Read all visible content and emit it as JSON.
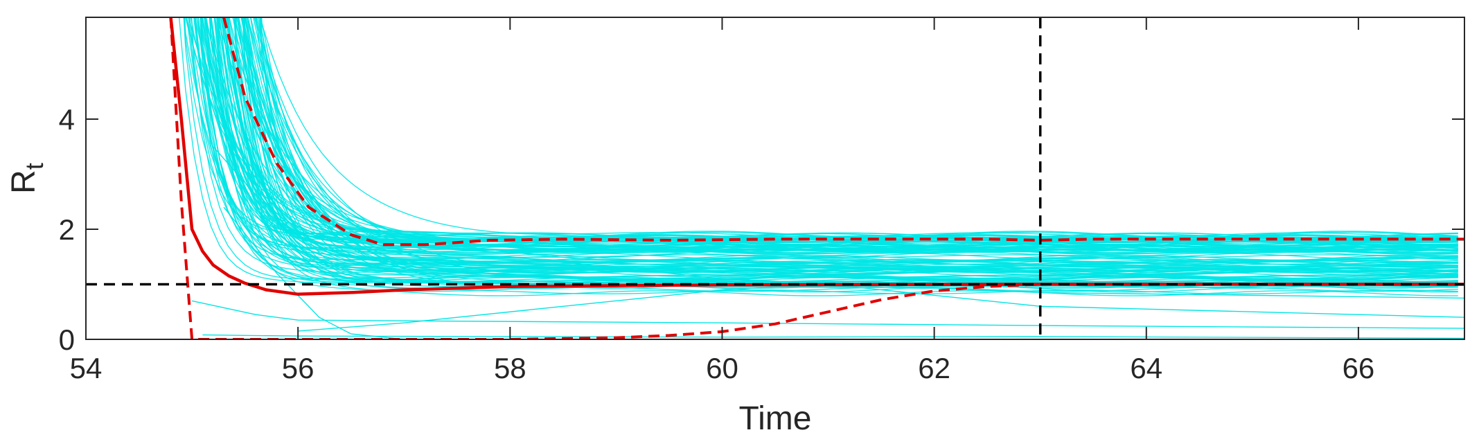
{
  "chart_data": {
    "type": "line",
    "xlabel": "Time",
    "ylabel": "R",
    "ylabel_subscript": "t",
    "xlim": [
      54,
      67
    ],
    "ylim": [
      0,
      5.85
    ],
    "xticks": [
      54,
      56,
      58,
      60,
      62,
      64,
      66
    ],
    "yticks": [
      0,
      2,
      4
    ],
    "grid": false,
    "colors": {
      "samples": "#00e5e5",
      "median": "#e00000",
      "bounds": "#e00000",
      "reference": "#000000",
      "axis": "#262626"
    },
    "reference_lines": [
      {
        "orientation": "horizontal",
        "value": 1,
        "style": "dashed"
      },
      {
        "orientation": "vertical",
        "value": 63,
        "style": "dashed"
      }
    ],
    "series": [
      {
        "role": "median",
        "style": "solid",
        "x": [
          54.8,
          54.9,
          55.0,
          55.1,
          55.2,
          55.35,
          55.5,
          55.7,
          56.0,
          56.5,
          57.0,
          58.0,
          60.0,
          63.0,
          67.0
        ],
        "y": [
          5.85,
          4.0,
          2.0,
          1.6,
          1.35,
          1.15,
          1.02,
          0.9,
          0.82,
          0.85,
          0.9,
          0.96,
          0.99,
          1.0,
          1.0
        ]
      },
      {
        "role": "upper_bound",
        "style": "dashed",
        "x": [
          55.3,
          55.5,
          55.8,
          56.1,
          56.5,
          56.8,
          57.2,
          57.8,
          58.5,
          59.5,
          60.5,
          61.5,
          62.5,
          63.0,
          63.5,
          64.5,
          65.5,
          66.5,
          67.0
        ],
        "y": [
          5.85,
          4.4,
          3.2,
          2.4,
          1.9,
          1.72,
          1.72,
          1.8,
          1.82,
          1.8,
          1.82,
          1.82,
          1.82,
          1.8,
          1.82,
          1.82,
          1.82,
          1.82,
          1.82
        ]
      },
      {
        "role": "lower_bound",
        "style": "dashed",
        "x": [
          54.8,
          54.9,
          55.0,
          56.0,
          58.0,
          59.0,
          59.5,
          60.0,
          60.5,
          61.0,
          61.5,
          62.0,
          62.5,
          63.0,
          64.0,
          67.0
        ],
        "y": [
          5.85,
          2.5,
          0.0,
          0.0,
          0.0,
          0.03,
          0.07,
          0.14,
          0.28,
          0.5,
          0.72,
          0.88,
          0.96,
          1.0,
          1.0,
          1.0
        ]
      },
      {
        "role": "samples",
        "count": 120,
        "onset_range": [
          54.85,
          55.6
        ],
        "plateau_range": [
          0.8,
          1.92
        ]
      }
    ]
  }
}
